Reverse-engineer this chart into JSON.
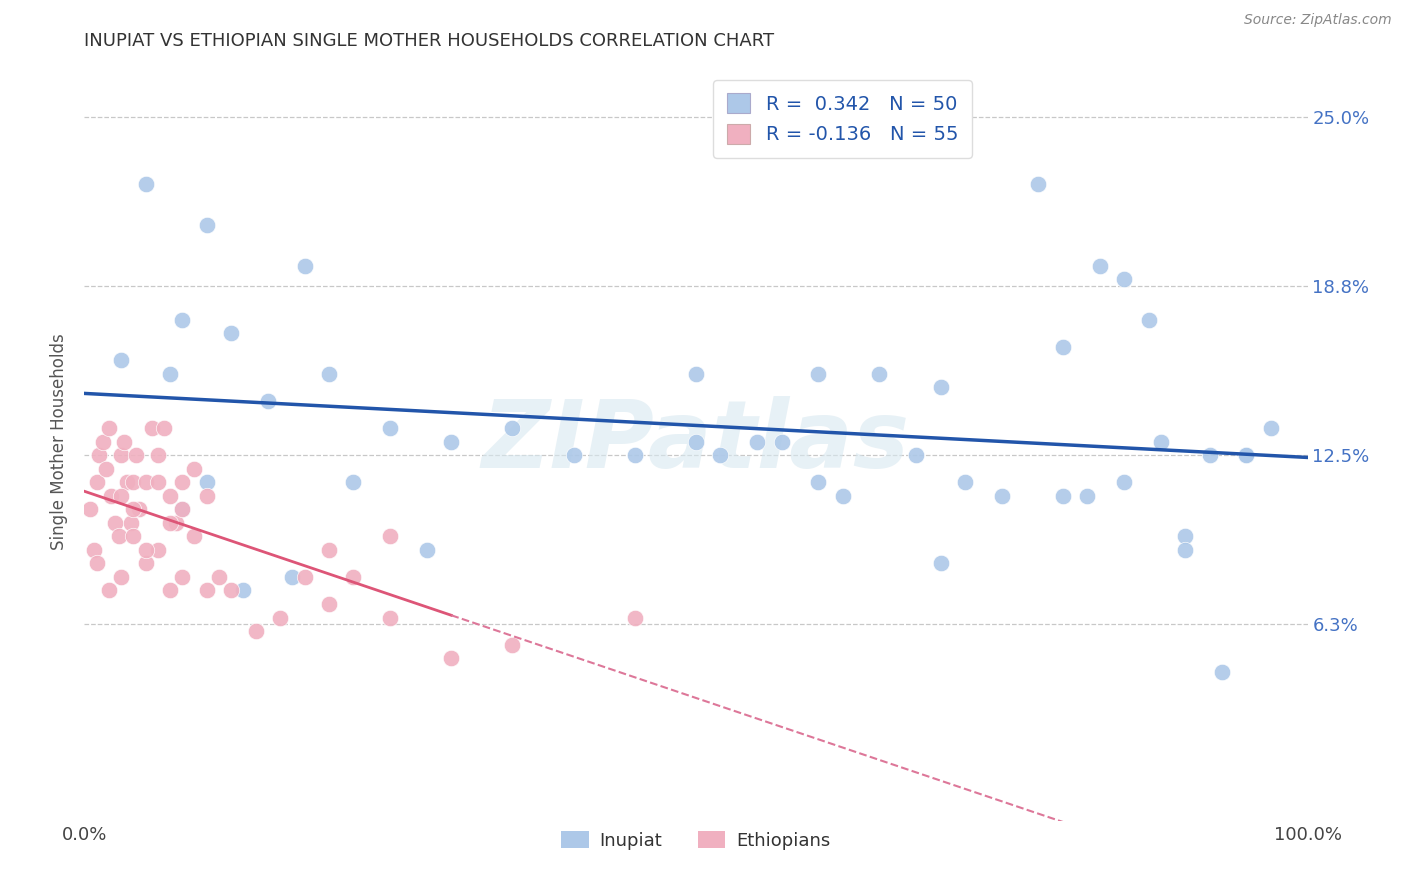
{
  "title": "INUPIAT VS ETHIOPIAN SINGLE MOTHER HOUSEHOLDS CORRELATION CHART",
  "source": "Source: ZipAtlas.com",
  "ylabel": "Single Mother Households",
  "xlim": [
    0,
    100
  ],
  "ylim": [
    -1,
    27
  ],
  "ytick_vals": [
    6.25,
    12.5,
    18.75,
    25.0
  ],
  "ytick_labels": [
    "6.3%",
    "12.5%",
    "18.8%",
    "25.0%"
  ],
  "background_color": "#ffffff",
  "grid_color": "#c8c8c8",
  "inupiat_color": "#adc8e8",
  "ethiopian_color": "#f0b0c0",
  "inupiat_line_color": "#2255aa",
  "ethiopian_line_solid_color": "#dd5577",
  "ethiopian_line_dash_color": "#dd7799",
  "R_inupiat": 0.342,
  "N_inupiat": 50,
  "R_ethiopian": -0.136,
  "N_ethiopian": 55,
  "watermark": "ZIPatlas",
  "inupiat_x": [
    5,
    10,
    18,
    8,
    12,
    3,
    7,
    15,
    20,
    25,
    30,
    35,
    40,
    45,
    50,
    55,
    60,
    65,
    68,
    70,
    75,
    78,
    80,
    83,
    85,
    87,
    90,
    93,
    95,
    97,
    50,
    57,
    62,
    72,
    82,
    88,
    92,
    52,
    60,
    70,
    80,
    85,
    90,
    95,
    8,
    10,
    13,
    17,
    22,
    28
  ],
  "inupiat_y": [
    22.5,
    21.0,
    19.5,
    17.5,
    17.0,
    16.0,
    15.5,
    14.5,
    15.5,
    13.5,
    13.0,
    13.5,
    12.5,
    12.5,
    13.0,
    13.0,
    15.5,
    15.5,
    12.5,
    15.0,
    11.0,
    22.5,
    16.5,
    19.5,
    19.0,
    17.5,
    9.5,
    4.5,
    12.5,
    13.5,
    15.5,
    13.0,
    11.0,
    11.5,
    11.0,
    13.0,
    12.5,
    12.5,
    11.5,
    8.5,
    11.0,
    11.5,
    9.0,
    12.5,
    10.5,
    11.5,
    7.5,
    8.0,
    11.5,
    9.0
  ],
  "ethiopian_x": [
    0.5,
    0.8,
    1.0,
    1.2,
    1.5,
    1.8,
    2.0,
    2.2,
    2.5,
    2.8,
    3.0,
    3.2,
    3.5,
    3.8,
    4.0,
    4.2,
    4.5,
    5.0,
    5.5,
    6.0,
    6.5,
    7.0,
    7.5,
    8.0,
    1.0,
    2.0,
    3.0,
    4.0,
    5.0,
    6.0,
    7.0,
    8.0,
    9.0,
    10.0,
    11.0,
    12.0,
    14.0,
    16.0,
    18.0,
    20.0,
    22.0,
    25.0,
    30.0,
    35.0,
    5.0,
    4.0,
    3.0,
    6.0,
    7.0,
    8.0,
    9.0,
    10.0,
    45.0,
    25.0,
    20.0
  ],
  "ethiopian_y": [
    10.5,
    9.0,
    11.5,
    12.5,
    13.0,
    12.0,
    13.5,
    11.0,
    10.0,
    9.5,
    12.5,
    13.0,
    11.5,
    10.0,
    11.5,
    12.5,
    10.5,
    11.5,
    13.5,
    12.5,
    13.5,
    11.0,
    10.0,
    10.5,
    8.5,
    7.5,
    8.0,
    9.5,
    8.5,
    9.0,
    7.5,
    8.0,
    9.5,
    7.5,
    8.0,
    7.5,
    6.0,
    6.5,
    8.0,
    7.0,
    8.0,
    6.5,
    5.0,
    5.5,
    9.0,
    10.5,
    11.0,
    11.5,
    10.0,
    11.5,
    12.0,
    11.0,
    6.5,
    9.5,
    9.0
  ]
}
